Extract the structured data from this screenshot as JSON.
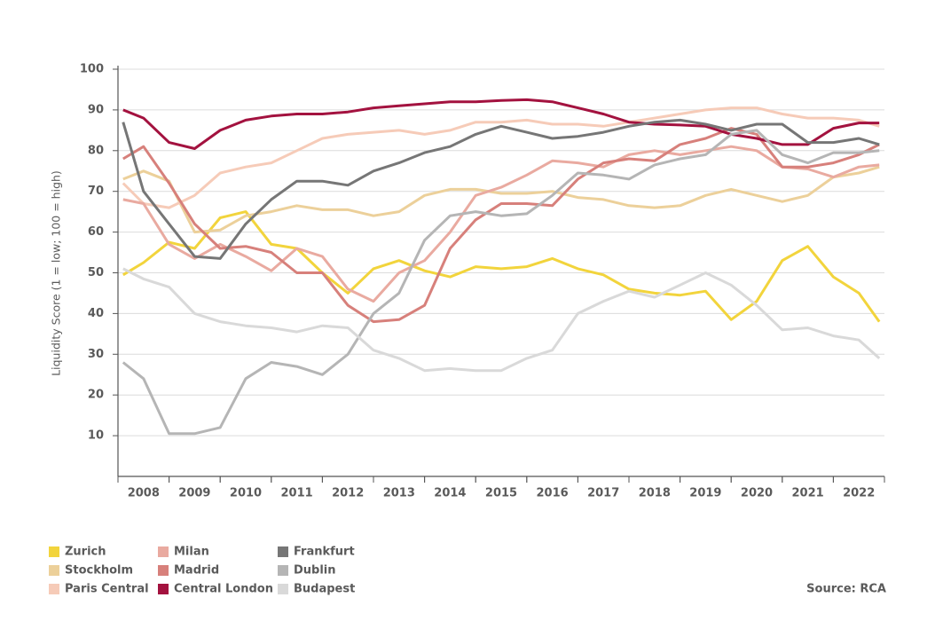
{
  "chart_data": {
    "type": "line",
    "y_label": "Liquidity Score (1 = low; 100 = high)",
    "source": "Source: RCA",
    "x": [
      2008.1,
      2008.5,
      2009,
      2009.5,
      2010,
      2010.5,
      2011,
      2011.5,
      2012,
      2012.5,
      2013,
      2013.5,
      2014,
      2014.5,
      2015,
      2015.5,
      2016,
      2016.5,
      2017,
      2017.5,
      2018,
      2018.5,
      2019,
      2019.5,
      2020,
      2020.5,
      2021,
      2021.5,
      2022,
      2022.5,
      2022.9
    ],
    "xlim": [
      2008,
      2023
    ],
    "xticks": [
      {
        "value": 2008.5,
        "label": "2008"
      },
      {
        "value": 2009.5,
        "label": "2009"
      },
      {
        "value": 2010.5,
        "label": "2010"
      },
      {
        "value": 2011.5,
        "label": "2011"
      },
      {
        "value": 2012.5,
        "label": "2012"
      },
      {
        "value": 2013.5,
        "label": "2013"
      },
      {
        "value": 2014.5,
        "label": "2014"
      },
      {
        "value": 2015.5,
        "label": "2015"
      },
      {
        "value": 2016.5,
        "label": "2016"
      },
      {
        "value": 2017.5,
        "label": "2017"
      },
      {
        "value": 2018.5,
        "label": "2018"
      },
      {
        "value": 2019.5,
        "label": "2019"
      },
      {
        "value": 2020.5,
        "label": "2020"
      },
      {
        "value": 2021.5,
        "label": "2021"
      },
      {
        "value": 2022.5,
        "label": "2022"
      }
    ],
    "ylim": [
      0,
      100
    ],
    "yticks": [
      10,
      20,
      30,
      40,
      50,
      60,
      70,
      80,
      90,
      100
    ],
    "grid": true,
    "series": [
      {
        "name": "Zurich",
        "color": "#f2d43c",
        "values": [
          49.5,
          52.5,
          57.5,
          56,
          63.5,
          65,
          57,
          56,
          50,
          45,
          51,
          53,
          50.5,
          49,
          51.5,
          51,
          51.5,
          53.5,
          51,
          49.5,
          46,
          45,
          44.5,
          45.5,
          38.5,
          43,
          53,
          56.5,
          49,
          45,
          38
        ]
      },
      {
        "name": "Stockholm",
        "color": "#ecd09a",
        "values": [
          73,
          75,
          72.5,
          60,
          60.5,
          64,
          65,
          66.5,
          65.5,
          65.5,
          64,
          65,
          69,
          70.5,
          70.5,
          69.5,
          69.5,
          70,
          68.5,
          68,
          66.5,
          66,
          66.5,
          69,
          70.5,
          69,
          67.5,
          69,
          73.5,
          74.5,
          76
        ]
      },
      {
        "name": "Paris Central",
        "color": "#f6cbb8",
        "values": [
          72,
          67,
          66,
          69,
          74.5,
          76,
          77,
          80,
          83,
          84,
          84.5,
          85,
          84,
          85,
          87,
          87,
          87.5,
          86.5,
          86.5,
          86,
          87,
          88,
          89,
          90,
          90.5,
          90.5,
          89,
          88,
          88,
          87.5,
          86
        ]
      },
      {
        "name": "Milan",
        "color": "#e9aaa0",
        "values": [
          68,
          67,
          57,
          53.5,
          57,
          54,
          50.5,
          56,
          54,
          46,
          43,
          50,
          53,
          60,
          69,
          71,
          74,
          77.5,
          77,
          76,
          79,
          80,
          79,
          80,
          81,
          80,
          76,
          75.5,
          73.5,
          76,
          76.5
        ]
      },
      {
        "name": "Madrid",
        "color": "#d7807b",
        "values": [
          78,
          81,
          72,
          62,
          56,
          56.5,
          55,
          50,
          50,
          42,
          38,
          38.5,
          42,
          56,
          63,
          67,
          67,
          66.5,
          73,
          77,
          78,
          77.5,
          81.5,
          83,
          85.5,
          84,
          76,
          76,
          77,
          79,
          81.5
        ]
      },
      {
        "name": "Central London",
        "color": "#a3123f",
        "values": [
          90,
          88,
          82,
          80.5,
          85,
          87.5,
          88.5,
          89,
          89,
          89.5,
          90.5,
          91,
          91.5,
          92,
          92,
          92.3,
          92.5,
          92,
          90.5,
          89,
          87,
          86.5,
          86.3,
          86,
          84,
          83,
          81.5,
          81.5,
          85.5,
          86.8,
          86.8
        ]
      },
      {
        "name": "Frankfurt",
        "color": "#767676",
        "values": [
          87,
          70,
          62,
          54,
          53.5,
          62,
          68,
          72.5,
          72.5,
          71.5,
          75,
          77,
          79.5,
          81,
          84,
          86,
          84.5,
          83,
          83.5,
          84.5,
          86,
          87,
          87.5,
          86.5,
          85,
          86.5,
          86.5,
          82,
          82,
          83,
          81.5
        ]
      },
      {
        "name": "Dublin",
        "color": "#b5b5b5",
        "values": [
          28,
          24,
          10.5,
          10.5,
          12,
          24,
          28,
          27,
          25,
          30,
          40,
          45,
          58,
          64,
          65,
          64,
          64.5,
          69,
          74.5,
          74,
          73,
          76.5,
          78,
          79,
          84,
          85,
          79,
          77,
          79.5,
          79.5,
          80
        ]
      },
      {
        "name": "Budapest",
        "color": "#d9d9d9",
        "values": [
          51,
          48.5,
          46.5,
          40,
          38,
          37,
          36.5,
          35.5,
          37,
          36.5,
          31,
          29,
          26,
          26.5,
          26,
          26,
          29,
          31,
          40,
          43,
          45.5,
          44,
          47,
          50,
          47,
          42,
          36,
          36.5,
          34.5,
          33.5,
          29
        ]
      }
    ]
  }
}
